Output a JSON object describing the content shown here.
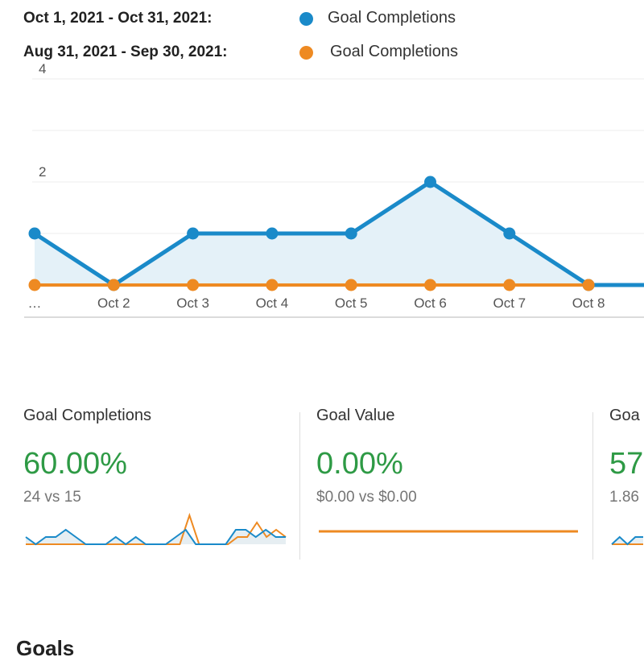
{
  "legend": [
    {
      "range": "Oct 1, 2021 - Oct 31, 2021:",
      "label": "Goal Completions",
      "color": "#1a8ac9"
    },
    {
      "range": "Aug 31, 2021 - Sep 30, 2021:",
      "label": "Goal Completions",
      "color": "#ee8a22"
    }
  ],
  "chart_data": {
    "type": "line",
    "x": [
      "…",
      "Oct 2",
      "Oct 3",
      "Oct 4",
      "Oct 5",
      "Oct 6",
      "Oct 7",
      "Oct 8"
    ],
    "y_ticks": [
      "4",
      "2"
    ],
    "ylim": [
      0,
      4
    ],
    "series": [
      {
        "name": "Goal Completions (Oct 1, 2021 - Oct 31, 2021)",
        "values": [
          1,
          0,
          1,
          1,
          1,
          2,
          1,
          0
        ],
        "color": "#1a8ac9",
        "fill": "#e4f1f8"
      },
      {
        "name": "Goal Completions (Aug 31, 2021 - Sep 30, 2021)",
        "values": [
          0,
          0,
          0,
          0,
          0,
          0,
          0,
          0
        ],
        "color": "#ee8a22"
      }
    ]
  },
  "metrics": [
    {
      "title": "Goal Completions",
      "percent": "60.00%",
      "comparison": "24 vs 15",
      "spark": {
        "current": [
          1,
          0,
          1,
          1,
          2,
          1,
          0,
          0,
          0,
          1,
          0,
          1,
          0,
          0,
          0,
          1,
          2,
          0,
          0,
          0,
          0,
          2,
          2,
          1,
          2,
          1,
          1
        ],
        "previous": [
          0,
          0,
          0,
          0,
          0,
          0,
          0,
          0,
          0,
          0,
          0,
          0,
          0,
          0,
          0,
          0,
          0,
          4,
          0,
          0,
          0,
          0,
          1,
          1,
          3,
          1,
          2,
          1
        ]
      }
    },
    {
      "title": "Goal Value",
      "percent": "0.00%",
      "comparison": "$0.00 vs $0.00",
      "spark": {
        "current": [
          0,
          0,
          0,
          0,
          0,
          0,
          0,
          0,
          0,
          0
        ],
        "previous": [
          0,
          0,
          0,
          0,
          0,
          0,
          0,
          0,
          0,
          0
        ]
      }
    },
    {
      "title": "Goa",
      "percent": "57",
      "comparison": "1.86",
      "spark": {
        "current": [
          0,
          1,
          0,
          1,
          1
        ],
        "previous": [
          0,
          0,
          0,
          0,
          0
        ]
      }
    }
  ],
  "bottom_text": "Goals"
}
